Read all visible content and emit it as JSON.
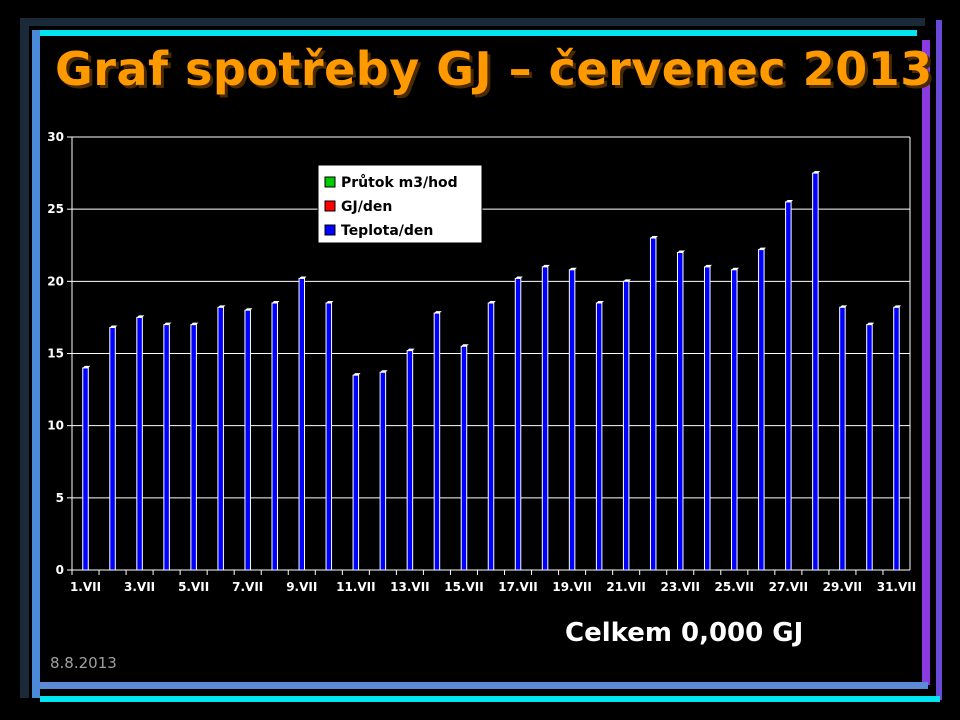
{
  "slide": {
    "title": "Graf spotřeby GJ – červenec 2013",
    "total": "Celkem 0,000 GJ",
    "date": "8.8.2013"
  },
  "colors": {
    "title": "#FF9900",
    "flow": "#00CC00",
    "energy": "#FF0000",
    "temperature": "#0000FF"
  },
  "chart_data": {
    "type": "bar",
    "categories": [
      "1.VII",
      "2.VII",
      "3.VII",
      "4.VII",
      "5.VII",
      "6.VII",
      "7.VII",
      "8.VII",
      "9.VII",
      "10.VII",
      "11.VII",
      "12.VII",
      "13.VII",
      "14.VII",
      "15.VII",
      "16.VII",
      "17.VII",
      "18.VII",
      "19.VII",
      "20.VII",
      "21.VII",
      "22.VII",
      "23.VII",
      "24.VII",
      "25.VII",
      "26.VII",
      "27.VII",
      "28.VII",
      "29.VII",
      "30.VII",
      "31.VII"
    ],
    "tick_labels": [
      "1.VII",
      "3.VII",
      "5.VII",
      "7.VII",
      "9.VII",
      "11.VII",
      "13.VII",
      "15.VII",
      "17.VII",
      "19.VII",
      "21.VII",
      "23.VII",
      "25.VII",
      "27.VII",
      "29.VII",
      "31.VII"
    ],
    "series": [
      {
        "name": "Průtok m3/hod",
        "color": "#00CC00",
        "values": [
          0,
          0,
          0,
          0,
          0,
          0,
          0,
          0,
          0,
          0,
          0,
          0,
          0,
          0,
          0,
          0,
          0,
          0,
          0,
          0,
          0,
          0,
          0,
          0,
          0,
          0,
          0,
          0,
          0,
          0,
          0
        ]
      },
      {
        "name": "GJ/den",
        "color": "#FF0000",
        "values": [
          0,
          0,
          0,
          0,
          0,
          0,
          0,
          0,
          0,
          0,
          0,
          0,
          0,
          0,
          0,
          0,
          0,
          0,
          0,
          0,
          0,
          0,
          0,
          0,
          0,
          0,
          0,
          0,
          0,
          0,
          0
        ]
      },
      {
        "name": "Teplota/den",
        "color": "#0000FF",
        "values": [
          14,
          16.8,
          17.5,
          17,
          17,
          18.2,
          18,
          18.5,
          20.2,
          18.5,
          13.5,
          13.7,
          15.2,
          17.8,
          15.5,
          18.5,
          20.2,
          21,
          20.8,
          18.5,
          20,
          23,
          22,
          21,
          20.8,
          22.2,
          25.5,
          27.5,
          18.2,
          17,
          18.2
        ]
      }
    ],
    "y_ticks": [
      0,
      5,
      10,
      15,
      20,
      25,
      30
    ],
    "ylim": [
      0,
      30
    ],
    "grid": true,
    "legend_position": "top-center"
  }
}
